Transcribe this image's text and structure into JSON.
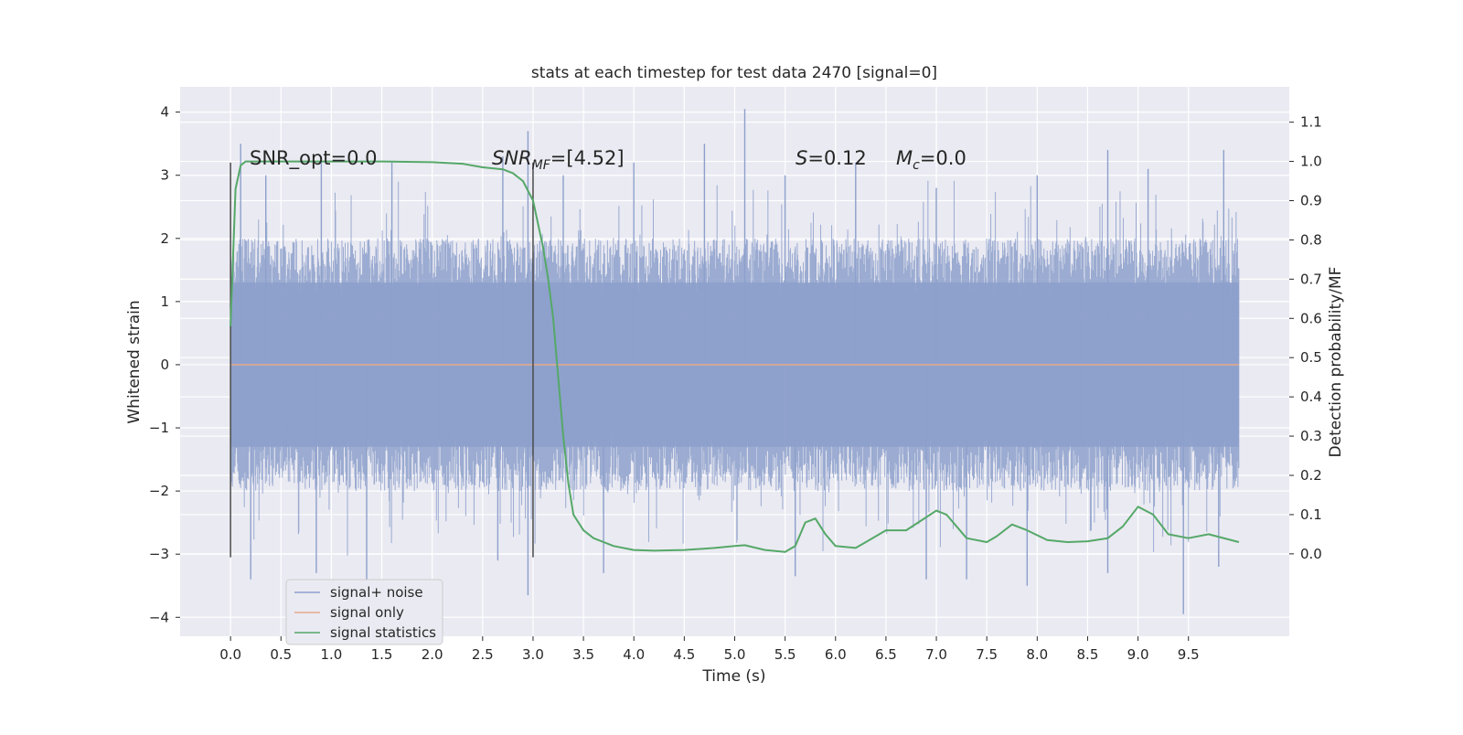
{
  "chart_data": {
    "type": "line",
    "title": "stats at each timestep for test data 2470 [signal=0]",
    "xlabel": "Time (s)",
    "ylabel": "Whitened strain",
    "ylabel_right": "Detection probability/MF",
    "xlim": [
      -0.5,
      10.5
    ],
    "ylim": [
      -4.3,
      4.4
    ],
    "ylim_right": [
      -0.21,
      1.19
    ],
    "x_ticks": [
      "0.0",
      "0.5",
      "1.0",
      "1.5",
      "2.0",
      "2.5",
      "3.0",
      "3.5",
      "4.0",
      "4.5",
      "5.0",
      "5.5",
      "6.0",
      "6.5",
      "7.0",
      "7.5",
      "8.0",
      "8.5",
      "9.0",
      "9.5"
    ],
    "y_ticks_left": [
      "4",
      "3",
      "2",
      "1",
      "0",
      "−1",
      "−2",
      "−3",
      "−4"
    ],
    "y_ticks_right": [
      "1.1",
      "1.0",
      "0.9",
      "0.8",
      "0.7",
      "0.6",
      "0.5",
      "0.4",
      "0.3",
      "0.2",
      "0.1",
      "0.0"
    ],
    "grid": true,
    "legend_position": "lower-left",
    "annotations": {
      "snr_opt": "SNR_opt=0.0",
      "snr_mf_label": "SNR",
      "snr_mf_sub": "MF",
      "snr_mf_value": "=[4.52]",
      "s_label": "S",
      "s_value": "=0.12",
      "mc_label": "M",
      "mc_sub": "c",
      "mc_value": "=0.0"
    },
    "vlines": [
      {
        "x": 0.0,
        "y": [
          -3.05,
          3.2
        ]
      },
      {
        "x": 3.0,
        "y": [
          -3.05,
          3.2
        ]
      }
    ],
    "series": [
      {
        "name": "signal+ noise",
        "color": "#8da0cb",
        "x_range": [
          0.0,
          10.0
        ],
        "typical_range": [
          -2.0,
          2.0
        ],
        "peaks": [
          [
            0.1,
            3.5
          ],
          [
            0.35,
            3.0
          ],
          [
            0.9,
            3.3
          ],
          [
            1.6,
            3.2
          ],
          [
            2.7,
            3.3
          ],
          [
            2.95,
            3.7
          ],
          [
            3.3,
            3.0
          ],
          [
            4.0,
            3.2
          ],
          [
            4.7,
            3.5
          ],
          [
            5.1,
            4.05
          ],
          [
            5.5,
            3.0
          ],
          [
            6.2,
            3.2
          ],
          [
            7.0,
            2.8
          ],
          [
            8.0,
            3.0
          ],
          [
            8.7,
            3.4
          ],
          [
            9.1,
            3.1
          ],
          [
            9.85,
            3.4
          ],
          [
            0.2,
            -3.4
          ],
          [
            0.85,
            -3.3
          ],
          [
            1.35,
            -3.5
          ],
          [
            2.65,
            -3.1
          ],
          [
            2.95,
            -3.65
          ],
          [
            3.7,
            -3.3
          ],
          [
            5.6,
            -3.35
          ],
          [
            6.9,
            -3.4
          ],
          [
            7.3,
            -3.4
          ],
          [
            7.9,
            -3.5
          ],
          [
            8.7,
            -3.3
          ],
          [
            9.45,
            -3.95
          ],
          [
            9.8,
            -3.2
          ]
        ]
      },
      {
        "name": "signal only",
        "color": "#e8a98a",
        "x": [
          0.0,
          10.0
        ],
        "values": [
          0.0,
          0.0
        ]
      },
      {
        "name": "signal statistics",
        "axis": "right",
        "color": "#55a868",
        "x": [
          0.0,
          0.05,
          0.1,
          0.15,
          0.3,
          0.5,
          1.0,
          1.5,
          2.0,
          2.3,
          2.5,
          2.7,
          2.8,
          2.9,
          3.0,
          3.1,
          3.15,
          3.2,
          3.25,
          3.3,
          3.35,
          3.4,
          3.5,
          3.6,
          3.8,
          4.0,
          4.2,
          4.5,
          4.8,
          5.0,
          5.1,
          5.3,
          5.5,
          5.6,
          5.7,
          5.8,
          5.9,
          6.0,
          6.2,
          6.3,
          6.5,
          6.7,
          6.85,
          7.0,
          7.1,
          7.3,
          7.5,
          7.6,
          7.75,
          7.9,
          8.1,
          8.3,
          8.5,
          8.7,
          8.85,
          9.0,
          9.15,
          9.3,
          9.5,
          9.7,
          10.0
        ],
        "values": [
          0.58,
          0.93,
          0.99,
          1.0,
          1.0,
          1.0,
          1.0,
          1.0,
          0.998,
          0.994,
          0.985,
          0.98,
          0.97,
          0.95,
          0.9,
          0.78,
          0.7,
          0.6,
          0.45,
          0.3,
          0.18,
          0.1,
          0.06,
          0.04,
          0.02,
          0.01,
          0.008,
          0.01,
          0.015,
          0.02,
          0.022,
          0.01,
          0.005,
          0.02,
          0.08,
          0.09,
          0.05,
          0.02,
          0.015,
          0.03,
          0.06,
          0.06,
          0.085,
          0.11,
          0.1,
          0.04,
          0.03,
          0.045,
          0.075,
          0.06,
          0.035,
          0.03,
          0.032,
          0.04,
          0.07,
          0.12,
          0.1,
          0.05,
          0.04,
          0.05,
          0.03
        ]
      }
    ]
  }
}
